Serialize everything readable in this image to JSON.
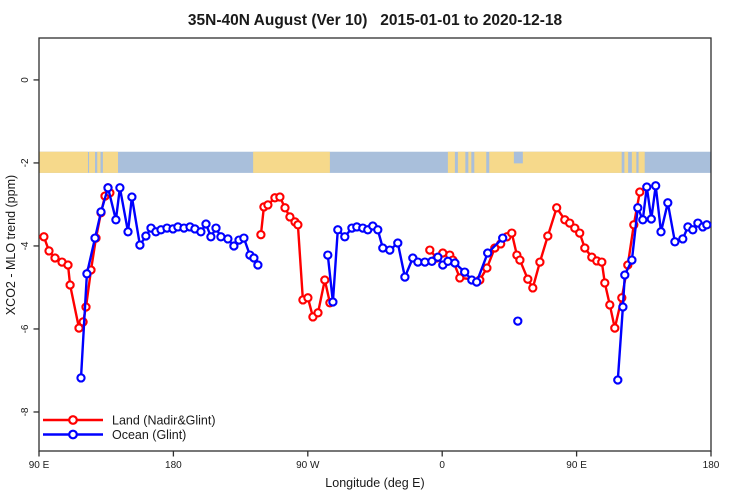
{
  "title": "35N-40N August (Ver 10)   2015-01-01 to 2020-12-18",
  "chart_data": {
    "type": "line",
    "title": "35N-40N August (Ver 10)   2015-01-01 to 2020-12-18",
    "xlabel": "Longitude (deg E)",
    "ylabel": "XCO2 - MLO trend (ppm)",
    "x_axis": {
      "range_deg": [
        90,
        540
      ],
      "ticks": [
        {
          "lon": 90,
          "label": "90 E"
        },
        {
          "lon": 180,
          "label": "180"
        },
        {
          "lon": 270,
          "label": "90 W"
        },
        {
          "lon": 360,
          "label": "0"
        },
        {
          "lon": 450,
          "label": "90 E"
        },
        {
          "lon": 540,
          "label": "180"
        }
      ]
    },
    "y_axis": {
      "range_ppm": [
        -8.94,
        1.01
      ],
      "ticks": [
        {
          "value": 0,
          "label": "0"
        },
        {
          "value": -2,
          "label": "-2"
        },
        {
          "value": -4,
          "label": "-4"
        },
        {
          "value": -6,
          "label": "-6"
        },
        {
          "value": -8,
          "label": "-8"
        }
      ]
    },
    "legend": [
      {
        "label": "Land (Nadir&Glint)",
        "color": "#ff0000"
      },
      {
        "label": "Ocean (Glint)",
        "color": "#0000ff"
      }
    ],
    "series": [
      {
        "name": "Land (Nadir&Glint)",
        "color": "#ff0000",
        "segments": [
          [
            [
              93.3,
              -3.78
            ],
            [
              96.7,
              -4.12
            ],
            [
              100.7,
              -4.29
            ],
            [
              105.4,
              -4.39
            ],
            [
              109.4,
              -4.46
            ],
            [
              110.8,
              -4.94
            ],
            [
              116.8,
              -5.98
            ],
            [
              119.5,
              -5.83
            ],
            [
              121.5,
              -5.47
            ],
            [
              124.8,
              -4.58
            ],
            [
              128.2,
              -3.81
            ],
            [
              131.5,
              -3.2
            ],
            [
              134.2,
              -2.8
            ],
            [
              136.2,
              -2.6
            ],
            [
              137.5,
              -2.72
            ]
          ],
          [
            [
              238.6,
              -3.73
            ],
            [
              240.6,
              -3.06
            ],
            [
              243.3,
              -3.01
            ],
            [
              248.0,
              -2.84
            ],
            [
              251.3,
              -2.82
            ],
            [
              254.7,
              -3.08
            ],
            [
              258.0,
              -3.3
            ],
            [
              261.4,
              -3.42
            ],
            [
              263.4,
              -3.49
            ],
            [
              266.7,
              -5.3
            ],
            [
              270.1,
              -5.25
            ],
            [
              273.4,
              -5.71
            ],
            [
              276.8,
              -5.61
            ],
            [
              281.4,
              -4.82
            ],
            [
              284.8,
              -5.37
            ]
          ],
          [
            [
              351.7,
              -4.1
            ],
            [
              356.4,
              -4.29
            ],
            [
              360.4,
              -4.17
            ],
            [
              365.1,
              -4.22
            ],
            [
              367.1,
              -4.34
            ],
            [
              371.8,
              -4.77
            ],
            [
              385.2,
              -4.82
            ],
            [
              389.9,
              -4.53
            ],
            [
              395.2,
              -4.05
            ],
            [
              399.2,
              -3.95
            ],
            [
              403.3,
              -3.78
            ],
            [
              406.6,
              -3.69
            ],
            [
              410.0,
              -4.22
            ],
            [
              412.0,
              -4.34
            ],
            [
              417.3,
              -4.8
            ],
            [
              420.7,
              -5.01
            ],
            [
              425.4,
              -4.39
            ],
            [
              430.7,
              -3.76
            ],
            [
              436.7,
              -3.08
            ],
            [
              442.1,
              -3.37
            ],
            [
              445.4,
              -3.45
            ],
            [
              448.8,
              -3.57
            ],
            [
              452.1,
              -3.69
            ],
            [
              455.5,
              -4.05
            ],
            [
              460.2,
              -4.27
            ],
            [
              463.5,
              -4.36
            ],
            [
              466.9,
              -4.39
            ],
            [
              468.9,
              -4.89
            ],
            [
              472.2,
              -5.42
            ],
            [
              475.6,
              -5.98
            ],
            [
              480.3,
              -5.25
            ],
            [
              484.3,
              -4.46
            ],
            [
              488.3,
              -3.49
            ],
            [
              492.3,
              -2.7
            ]
          ]
        ],
        "isolated_points": []
      },
      {
        "name": "Ocean (Glint)",
        "color": "#0000ff",
        "segments": [
          [
            [
              118.1,
              -7.18
            ],
            [
              122.1,
              -4.67
            ],
            [
              127.5,
              -3.81
            ],
            [
              131.5,
              -3.18
            ],
            [
              136.2,
              -2.6
            ],
            [
              141.5,
              -3.37
            ],
            [
              144.2,
              -2.6
            ],
            [
              149.6,
              -3.66
            ],
            [
              152.2,
              -2.82
            ],
            [
              157.6,
              -3.98
            ],
            [
              161.6,
              -3.76
            ],
            [
              165.0,
              -3.57
            ],
            [
              168.3,
              -3.66
            ],
            [
              171.7,
              -3.61
            ],
            [
              175.7,
              -3.57
            ],
            [
              179.7,
              -3.59
            ],
            [
              183.0,
              -3.54
            ],
            [
              187.1,
              -3.57
            ],
            [
              191.1,
              -3.54
            ],
            [
              194.4,
              -3.59
            ],
            [
              198.4,
              -3.66
            ],
            [
              201.8,
              -3.47
            ],
            [
              205.1,
              -3.78
            ],
            [
              208.5,
              -3.57
            ],
            [
              211.8,
              -3.78
            ],
            [
              216.5,
              -3.83
            ],
            [
              220.5,
              -4.0
            ],
            [
              223.9,
              -3.86
            ],
            [
              227.2,
              -3.81
            ],
            [
              231.2,
              -4.22
            ],
            [
              233.9,
              -4.29
            ],
            [
              236.6,
              -4.46
            ]
          ],
          [
            [
              283.4,
              -4.22
            ],
            [
              286.8,
              -5.35
            ],
            [
              290.1,
              -3.61
            ],
            [
              294.8,
              -3.78
            ],
            [
              299.5,
              -3.57
            ],
            [
              302.8,
              -3.54
            ],
            [
              306.8,
              -3.57
            ],
            [
              310.2,
              -3.61
            ],
            [
              313.5,
              -3.52
            ],
            [
              316.9,
              -3.61
            ],
            [
              320.2,
              -4.05
            ],
            [
              324.9,
              -4.1
            ],
            [
              330.3,
              -3.93
            ],
            [
              335.0,
              -4.75
            ],
            [
              340.3,
              -4.29
            ],
            [
              343.7,
              -4.39
            ],
            [
              348.4,
              -4.39
            ],
            [
              353.1,
              -4.37
            ],
            [
              357.1,
              -4.27
            ],
            [
              360.4,
              -4.46
            ],
            [
              363.8,
              -4.37
            ],
            [
              368.5,
              -4.41
            ],
            [
              375.1,
              -4.63
            ],
            [
              379.8,
              -4.82
            ],
            [
              383.1,
              -4.87
            ],
            [
              390.5,
              -4.17
            ],
            [
              400.5,
              -3.81
            ]
          ],
          [
            [
              477.6,
              -7.23
            ],
            [
              481.0,
              -5.47
            ],
            [
              482.3,
              -4.7
            ],
            [
              487.0,
              -4.34
            ],
            [
              491.0,
              -3.08
            ],
            [
              494.3,
              -3.37
            ],
            [
              497.0,
              -2.58
            ],
            [
              500.0,
              -3.35
            ],
            [
              503.0,
              -2.55
            ],
            [
              506.5,
              -3.66
            ],
            [
              511.1,
              -2.96
            ],
            [
              515.8,
              -3.9
            ],
            [
              521.1,
              -3.83
            ],
            [
              524.5,
              -3.54
            ],
            [
              527.8,
              -3.61
            ],
            [
              531.2,
              -3.45
            ],
            [
              534.5,
              -3.54
            ],
            [
              537.2,
              -3.49
            ]
          ]
        ],
        "isolated_points": [
          [
            410.6,
            -5.81
          ]
        ]
      }
    ],
    "map_strip": {
      "meaning": "land/ocean world-map band drawn across the plot",
      "band_ppm": [
        -1.73,
        -2.24
      ],
      "ocean_color": "#a9bfdb",
      "land_color": "#f6d98b",
      "land_segments_deg": [
        [
          90,
          122.8
        ],
        [
          123.5,
          127.5
        ],
        [
          129.0,
          131.2
        ],
        [
          132.8,
          142.9
        ],
        [
          233.4,
          284.8
        ],
        [
          363.8,
          368.5
        ],
        [
          370.5,
          375.5
        ],
        [
          377.5,
          379.5
        ],
        [
          381.5,
          389.5
        ],
        [
          391.5,
          480.2
        ],
        [
          482.0,
          484.5
        ],
        [
          487.0,
          490.0
        ],
        [
          491.5,
          495.6
        ]
      ],
      "ocean_patches_deg": [
        [
          408,
          414
        ]
      ]
    },
    "grid": false,
    "legend_position": "bottom-left"
  }
}
